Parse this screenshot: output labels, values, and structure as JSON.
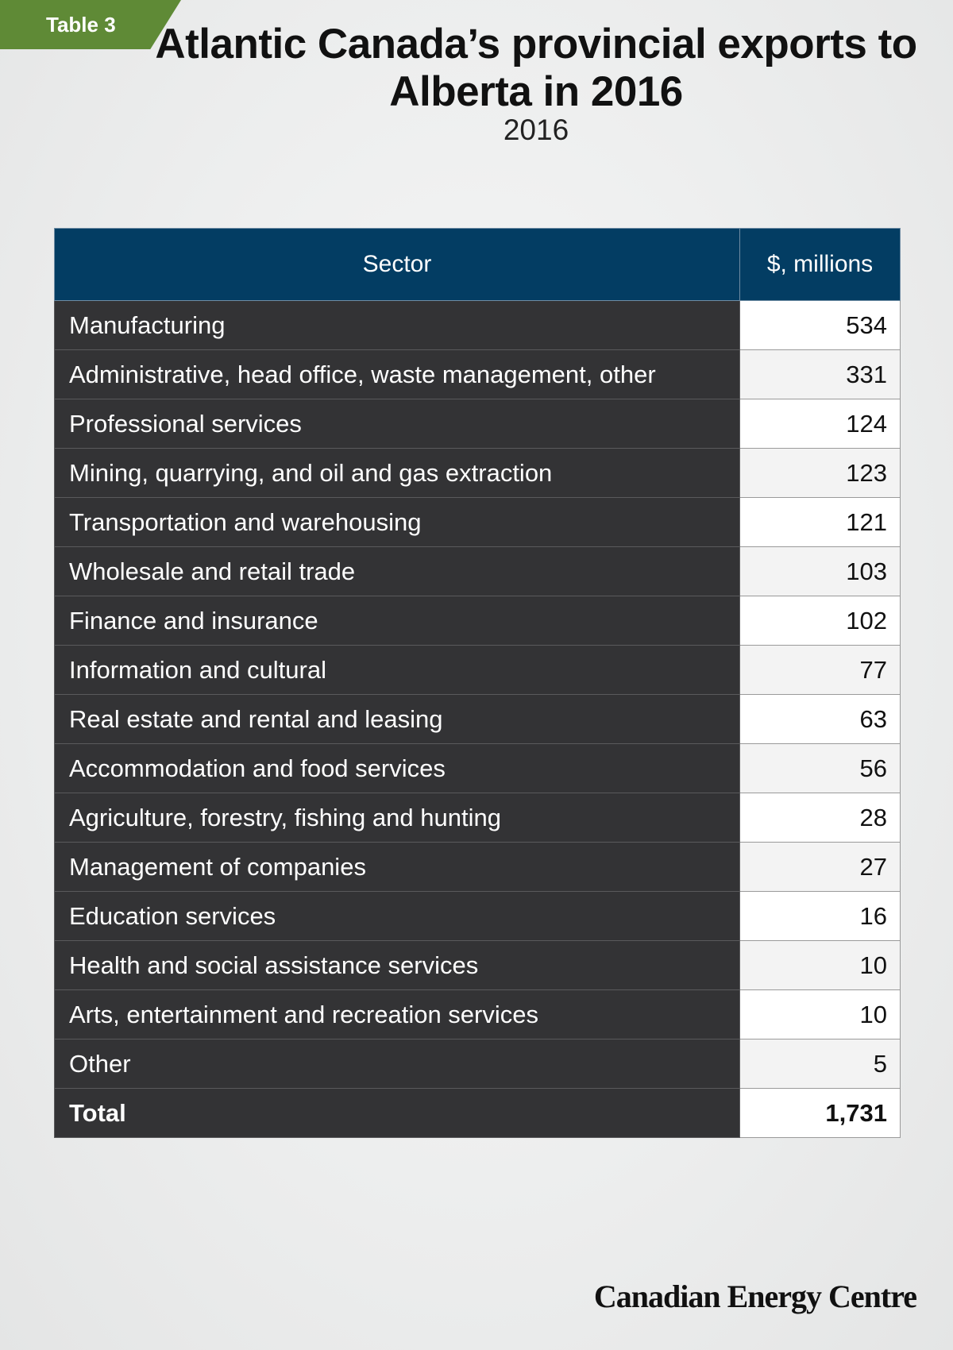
{
  "tag": {
    "label": "Table 3",
    "color": "#5f8a36"
  },
  "title": "Atlantic Canada’s provincial exports to Alberta in 2016",
  "subtitle": "2016",
  "table": {
    "header_color": "#033d63",
    "columns": [
      "Sector",
      "$, millions"
    ],
    "rows": [
      {
        "sector": "Manufacturing",
        "value": "534"
      },
      {
        "sector": "Administrative, head office, waste management, other",
        "value": "331"
      },
      {
        "sector": "Professional services",
        "value": "124"
      },
      {
        "sector": "Mining, quarrying, and oil and gas extraction",
        "value": "123"
      },
      {
        "sector": "Transportation and warehousing",
        "value": "121"
      },
      {
        "sector": "Wholesale and retail trade",
        "value": "103"
      },
      {
        "sector": "Finance and insurance",
        "value": "102"
      },
      {
        "sector": "Information and cultural",
        "value": "77"
      },
      {
        "sector": "Real estate and rental and leasing",
        "value": "63"
      },
      {
        "sector": "Accommodation and food services",
        "value": "56"
      },
      {
        "sector": "Agriculture, forestry, fishing and hunting",
        "value": "28"
      },
      {
        "sector": "Management of companies",
        "value": "27"
      },
      {
        "sector": "Education services",
        "value": "16"
      },
      {
        "sector": "Health and social assistance services",
        "value": "10"
      },
      {
        "sector": "Arts, entertainment and recreation services",
        "value": "10"
      },
      {
        "sector": "Other",
        "value": "5"
      }
    ],
    "total": {
      "label": "Total",
      "value": "1,731"
    }
  },
  "footer": {
    "brand": "Canadian Energy Centre"
  }
}
